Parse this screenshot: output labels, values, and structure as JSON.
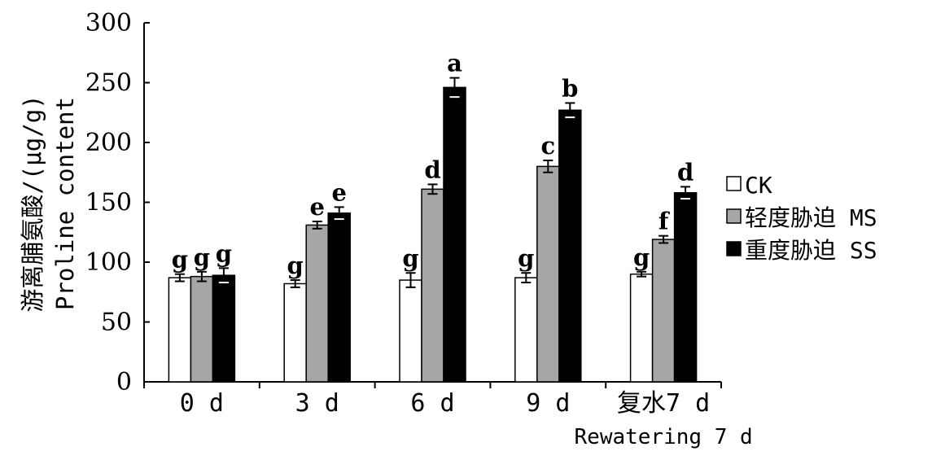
{
  "chart_data": {
    "type": "bar",
    "title": "",
    "ylabel": "游离脯氨酸/(μg/g)",
    "ylabel_en": "Proline content",
    "xlabel": "",
    "ylim": [
      0,
      300
    ],
    "yticks": [
      0,
      50,
      100,
      150,
      200,
      250,
      300
    ],
    "categories": [
      {
        "label": "0 d",
        "sub": ""
      },
      {
        "label": "3 d",
        "sub": ""
      },
      {
        "label": "6 d",
        "sub": ""
      },
      {
        "label": "9 d",
        "sub": ""
      },
      {
        "label": "复水7 d",
        "sub": "Rewatering 7 d"
      }
    ],
    "series": [
      {
        "name": "CK",
        "color": "#ffffff",
        "values": [
          87,
          82,
          85,
          87,
          90
        ],
        "errors": [
          3,
          3,
          6,
          4,
          2
        ],
        "letters": [
          "g",
          "g",
          "g",
          "g",
          "g"
        ]
      },
      {
        "name": "轻度胁迫 MS",
        "color": "#a6a6a6",
        "values": [
          88,
          131,
          161,
          180,
          119
        ],
        "errors": [
          4,
          3,
          4,
          5,
          3
        ],
        "letters": [
          "g",
          "e",
          "d",
          "c",
          "f"
        ]
      },
      {
        "name": "重度胁迫 SS",
        "color": "#000000",
        "values": [
          89,
          141,
          246,
          227,
          158
        ],
        "errors": [
          6,
          5,
          8,
          6,
          5
        ],
        "letters": [
          "g",
          "e",
          "a",
          "b",
          "d"
        ]
      }
    ],
    "legend_position": "right",
    "grid": false
  }
}
